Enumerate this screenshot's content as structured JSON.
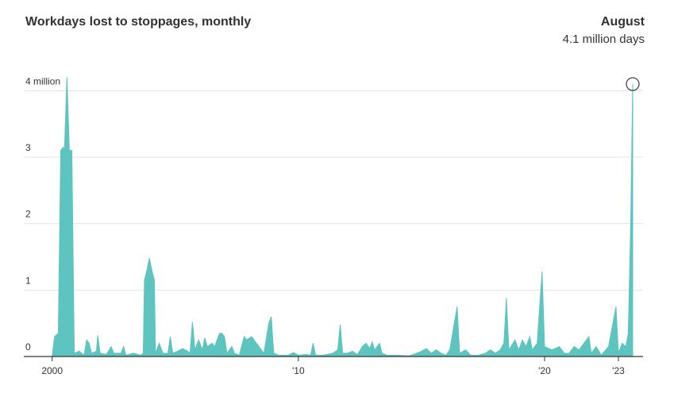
{
  "chart_data": {
    "type": "area",
    "title": "Workdays lost to stoppages, monthly",
    "annotation": {
      "title": "August",
      "text": "4.1 million days"
    },
    "series": [
      {
        "color": "#5ec4bf",
        "x": [
          2000.0,
          2000.1,
          2000.25,
          2000.35,
          2000.45,
          2000.5,
          2000.6,
          2000.7,
          2000.8,
          2000.9,
          2001.1,
          2001.3,
          2001.4,
          2001.5,
          2001.6,
          2001.8,
          2001.85,
          2001.95,
          2002.2,
          2002.4,
          2002.5,
          2002.8,
          2002.9,
          2003.0,
          2003.3,
          2003.6,
          2003.7,
          2003.75,
          2003.85,
          2003.95,
          2004.05,
          2004.15,
          2004.2,
          2004.35,
          2004.5,
          2004.7,
          2004.8,
          2004.9,
          2005.1,
          2005.3,
          2005.5,
          2005.6,
          2005.7,
          2005.8,
          2005.95,
          2006.1,
          2006.2,
          2006.3,
          2006.5,
          2006.6,
          2006.8,
          2006.9,
          2007.0,
          2007.1,
          2007.3,
          2007.4,
          2007.6,
          2007.8,
          2007.9,
          2008.1,
          2008.3,
          2008.5,
          2008.6,
          2008.8,
          2008.9,
          2009.0,
          2009.2,
          2009.6,
          2009.8,
          2010.0,
          2010.3,
          2010.5,
          2010.6,
          2010.7,
          2011.0,
          2011.4,
          2011.6,
          2011.7,
          2011.8,
          2012.0,
          2012.2,
          2012.4,
          2012.6,
          2012.75,
          2012.9,
          2013.0,
          2013.1,
          2013.3,
          2013.4,
          2013.6,
          2014.0,
          2014.5,
          2014.8,
          2015.0,
          2015.2,
          2015.4,
          2015.6,
          2015.8,
          2016.0,
          2016.15,
          2016.45,
          2016.55,
          2016.8,
          2017.0,
          2017.3,
          2017.6,
          2017.8,
          2018.0,
          2018.2,
          2018.35,
          2018.45,
          2018.55,
          2018.8,
          2018.95,
          2019.1,
          2019.25,
          2019.4,
          2019.5,
          2019.7,
          2019.9,
          2020.0,
          2020.3,
          2020.6,
          2020.8,
          2021.0,
          2021.2,
          2021.4,
          2021.6,
          2021.8,
          2021.9,
          2022.1,
          2022.3,
          2022.6,
          2022.9,
          2023.0,
          2023.15,
          2023.3,
          2023.4,
          2023.5,
          2023.58
        ],
        "values": [
          0,
          0.3,
          0.35,
          3.1,
          3.15,
          3.1,
          4.2,
          3.1,
          3.1,
          0.05,
          0.08,
          0.02,
          0.25,
          0.2,
          0.05,
          0.08,
          0.32,
          0.05,
          0.03,
          0.15,
          0.05,
          0.05,
          0.15,
          0.02,
          0.05,
          0.02,
          0.05,
          1.15,
          1.3,
          1.48,
          1.3,
          1.15,
          0.05,
          0.2,
          0.05,
          0.05,
          0.3,
          0.05,
          0.08,
          0.12,
          0.08,
          0.05,
          0.52,
          0.1,
          0.25,
          0.1,
          0.28,
          0.15,
          0.2,
          0.15,
          0.35,
          0.35,
          0.3,
          0.05,
          0.15,
          0.05,
          0.02,
          0.3,
          0.25,
          0.3,
          0.2,
          0.1,
          0.05,
          0.5,
          0.6,
          0.05,
          0.02,
          0.02,
          0.06,
          0.02,
          0.03,
          0.02,
          0.2,
          0.02,
          0.02,
          0.05,
          0.1,
          0.48,
          0.05,
          0.05,
          0.08,
          0.03,
          0.15,
          0.2,
          0.12,
          0.22,
          0.1,
          0.2,
          0.05,
          0.02,
          0.02,
          0.01,
          0.05,
          0.08,
          0.12,
          0.05,
          0.1,
          0.05,
          0.02,
          0.1,
          0.75,
          0.05,
          0.1,
          0.02,
          0.02,
          0.05,
          0.1,
          0.05,
          0.1,
          0.2,
          0.88,
          0.1,
          0.25,
          0.1,
          0.25,
          0.15,
          0.3,
          0.1,
          0.2,
          1.28,
          0.15,
          0.1,
          0.15,
          0.05,
          0.05,
          0.15,
          0.1,
          0.2,
          0.3,
          0.05,
          0.15,
          0.02,
          0.15,
          0.75,
          0.05,
          0.2,
          0.15,
          0.35,
          2.0,
          4.1
        ]
      }
    ],
    "xlim": [
      1998.85,
      2024.0
    ],
    "xticks": [
      2000,
      {
        "value": 2010,
        "label": "'10"
      },
      {
        "value": 2020,
        "label": "'20"
      },
      {
        "value": 2023,
        "label": "'23"
      }
    ],
    "ylim": [
      0,
      4.35
    ],
    "yticks": [
      0,
      1,
      2,
      3,
      {
        "value": 4,
        "label": "4 million"
      }
    ],
    "grid": true
  }
}
